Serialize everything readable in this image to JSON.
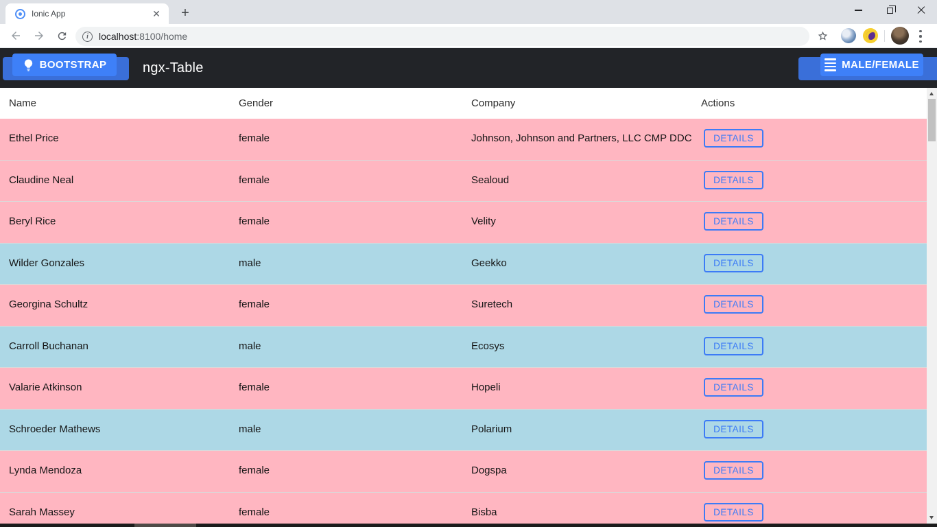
{
  "browser": {
    "tab_title": "Ionic App",
    "url_host": "localhost",
    "url_path": ":8100/home",
    "icons": {
      "favicon": "ionic-logo",
      "back": "back-arrow",
      "forward": "forward-arrow",
      "reload": "reload",
      "info": "i",
      "bookmark": "star-outline",
      "extensions": [
        "swirl-extension",
        "moon-extension"
      ],
      "menu": "three-dots",
      "window": [
        "minimize",
        "restore",
        "close"
      ]
    }
  },
  "navbar": {
    "bootstrap_label": "BOOTSTRAP",
    "title": "ngx-Table",
    "filter_label": "MALE/FEMALE",
    "colors": {
      "bar": "#222428",
      "button": "#3e80f8",
      "button_shade": "#3a6fd9"
    }
  },
  "table": {
    "columns": {
      "name": "Name",
      "gender": "Gender",
      "company": "Company",
      "actions": "Actions"
    },
    "action_label": "DETAILS",
    "rows": [
      {
        "name": "Ethel Price",
        "gender": "female",
        "company": "Johnson, Johnson and Partners, LLC CMP DDC"
      },
      {
        "name": "Claudine Neal",
        "gender": "female",
        "company": "Sealoud"
      },
      {
        "name": "Beryl Rice",
        "gender": "female",
        "company": "Velity"
      },
      {
        "name": "Wilder Gonzales",
        "gender": "male",
        "company": "Geekko"
      },
      {
        "name": "Georgina Schultz",
        "gender": "female",
        "company": "Suretech"
      },
      {
        "name": "Carroll Buchanan",
        "gender": "male",
        "company": "Ecosys"
      },
      {
        "name": "Valarie Atkinson",
        "gender": "female",
        "company": "Hopeli"
      },
      {
        "name": "Schroeder Mathews",
        "gender": "male",
        "company": "Polarium"
      },
      {
        "name": "Lynda Mendoza",
        "gender": "female",
        "company": "Dogspa"
      },
      {
        "name": "Sarah Massey",
        "gender": "female",
        "company": "Bisba"
      }
    ],
    "colors": {
      "female_row": "#ffb6c1",
      "male_row": "#add8e6",
      "accent": "#3c7bf6"
    }
  }
}
